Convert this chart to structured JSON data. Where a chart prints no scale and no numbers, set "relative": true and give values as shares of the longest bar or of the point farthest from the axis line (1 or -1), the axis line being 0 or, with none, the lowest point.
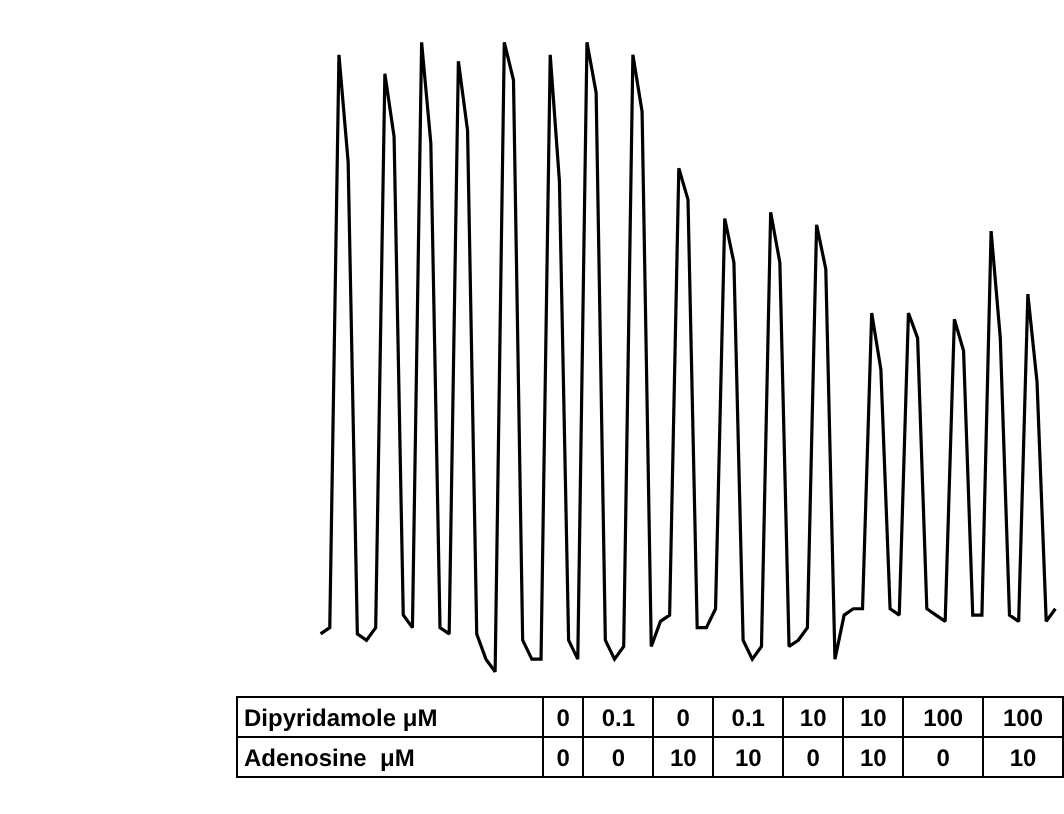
{
  "chart_data": {
    "type": "line",
    "relative": true,
    "color": "#000000",
    "categories": [
      null,
      null,
      null,
      null,
      null,
      null,
      null,
      null,
      null,
      null,
      null,
      null,
      null,
      null,
      null,
      null,
      null,
      null,
      null,
      null,
      null,
      null,
      null,
      null,
      null,
      null,
      null,
      null,
      null,
      null,
      null,
      null,
      null,
      null,
      null,
      null,
      null,
      null,
      null,
      null,
      null,
      null,
      null,
      null,
      null,
      null,
      null,
      null,
      null,
      null,
      null,
      null,
      null,
      null,
      null,
      null,
      null,
      null,
      null,
      null,
      null,
      null,
      null,
      null,
      null,
      null,
      null,
      null,
      null,
      null,
      null,
      null,
      null,
      null,
      null,
      null,
      null,
      null,
      null,
      null,
      null
    ],
    "values": [
      0.06,
      0.07,
      0.98,
      0.81,
      0.06,
      0.05,
      0.07,
      0.95,
      0.85,
      0.09,
      0.07,
      1,
      0.84,
      0.07,
      0.06,
      0.97,
      0.86,
      0.06,
      0.02,
      0,
      1,
      0.94,
      0.05,
      0.02,
      0.02,
      0.98,
      0.78,
      0.05,
      0.02,
      1,
      0.92,
      0.05,
      0.02,
      0.04,
      0.98,
      0.89,
      0.04,
      0.08,
      0.09,
      0.8,
      0.75,
      0.07,
      0.07,
      0.1,
      0.72,
      0.65,
      0.05,
      0.02,
      0.04,
      0.73,
      0.65,
      0.04,
      0.05,
      0.07,
      0.71,
      0.64,
      0.02,
      0.09,
      0.1,
      0.1,
      0.57,
      0.48,
      0.1,
      0.09,
      0.57,
      0.53,
      0.1,
      0.09,
      0.08,
      0.56,
      0.51,
      0.09,
      0.09,
      0.7,
      0.53,
      0.09,
      0.08,
      0.6,
      0.46,
      0.08,
      0.1
    ],
    "annotations": [
      "Dipyridamole μM",
      "0",
      "0.1",
      "0",
      "0.1",
      "10",
      "10",
      "100",
      "100",
      "Adenosine  μM",
      "0",
      "0",
      "10",
      "10",
      "0",
      "10",
      "0",
      "10"
    ]
  }
}
